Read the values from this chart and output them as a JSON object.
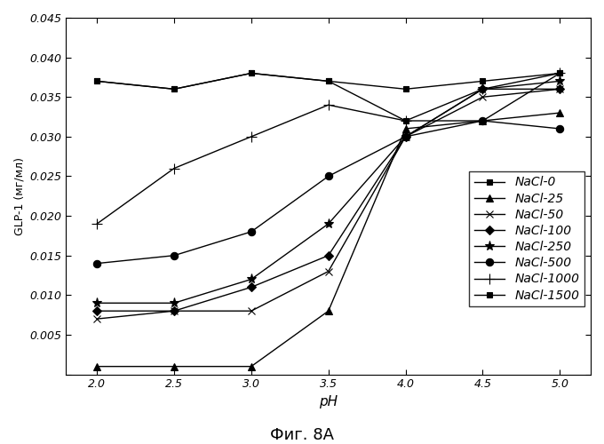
{
  "pH": [
    2.0,
    2.5,
    3.0,
    3.5,
    4.0,
    4.5,
    5.0
  ],
  "series": {
    "NaCl-0": [
      0.037,
      0.036,
      0.038,
      0.037,
      0.032,
      0.032,
      0.038
    ],
    "NaCl-25": [
      0.001,
      0.001,
      0.001,
      0.008,
      0.031,
      0.032,
      0.033
    ],
    "NaCl-50": [
      0.007,
      0.008,
      0.008,
      0.013,
      0.03,
      0.035,
      0.036
    ],
    "NaCl-100": [
      0.008,
      0.008,
      0.011,
      0.015,
      0.03,
      0.036,
      0.036
    ],
    "NaCl-250": [
      0.009,
      0.009,
      0.012,
      0.019,
      0.03,
      0.036,
      0.037
    ],
    "NaCl-500": [
      0.014,
      0.015,
      0.018,
      0.025,
      0.03,
      0.032,
      0.031
    ],
    "NaCl-1000": [
      0.019,
      0.026,
      0.03,
      0.034,
      0.032,
      0.036,
      0.038
    ],
    "NaCl-1500": [
      0.037,
      0.036,
      0.038,
      0.037,
      0.036,
      0.037,
      0.038
    ]
  },
  "markers": {
    "NaCl-0": "s",
    "NaCl-25": "^",
    "NaCl-50": "x",
    "NaCl-100": "D",
    "NaCl-250": "*",
    "NaCl-500": "o",
    "NaCl-1000": "+",
    "NaCl-1500": "s"
  },
  "marker_sizes": {
    "NaCl-0": 5,
    "NaCl-25": 6,
    "NaCl-50": 6,
    "NaCl-100": 5,
    "NaCl-250": 8,
    "NaCl-500": 6,
    "NaCl-1000": 8,
    "NaCl-1500": 5
  },
  "marker_face": {
    "NaCl-0": "black",
    "NaCl-25": "black",
    "NaCl-50": "none",
    "NaCl-100": "black",
    "NaCl-250": "black",
    "NaCl-500": "black",
    "NaCl-1000": "black",
    "NaCl-1500": "black"
  },
  "xlim": [
    1.8,
    5.2
  ],
  "ylim": [
    0.0,
    0.045
  ],
  "xlabel": "pH",
  "ylabel": "GLP-1 (мг/мл)",
  "figure_title": "Фиг. 8A",
  "xticks": [
    2.0,
    2.5,
    3.0,
    3.5,
    4.0,
    4.5,
    5.0
  ],
  "yticks": [
    0.0,
    0.005,
    0.01,
    0.015,
    0.02,
    0.025,
    0.03,
    0.035,
    0.04,
    0.045
  ],
  "ytick_labels": [
    "",
    "0.005",
    "0.010",
    "0.015",
    "0.020",
    "0.025",
    "0.030",
    "0.035",
    "0.040",
    "0.045"
  ]
}
